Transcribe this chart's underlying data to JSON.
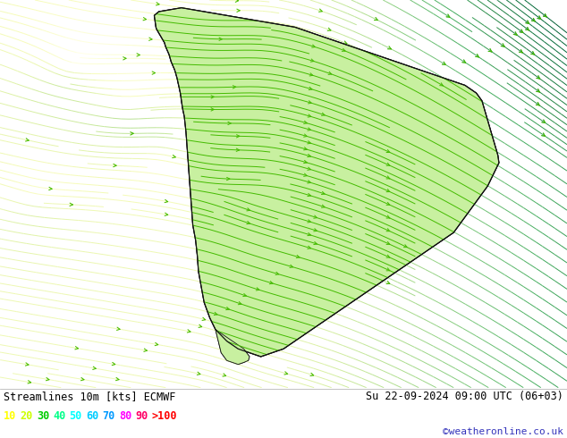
{
  "title_left": "Streamlines 10m [kts] ECMWF",
  "title_right": "Su 22-09-2024 09:00 UTC (06+03)",
  "watermark": "©weatheronline.co.uk",
  "legend_values": [
    "10",
    "20",
    "30",
    "40",
    "50",
    "60",
    "70",
    "80",
    "90",
    ">100"
  ],
  "legend_colors": [
    "#ffff00",
    "#ccff00",
    "#00cc00",
    "#00ff88",
    "#00ffff",
    "#00ccff",
    "#0099ff",
    "#ff00ff",
    "#ff0066",
    "#ff0000"
  ],
  "bg_color": "#ffffff",
  "ocean_color": "#d8d8d8",
  "land_color": "#c8f0a0",
  "border_color": "#111111",
  "bottom_bar_bg": "#ffffff",
  "watermark_color": "#3333bb",
  "figsize": [
    6.34,
    4.9
  ],
  "dpi": 100
}
